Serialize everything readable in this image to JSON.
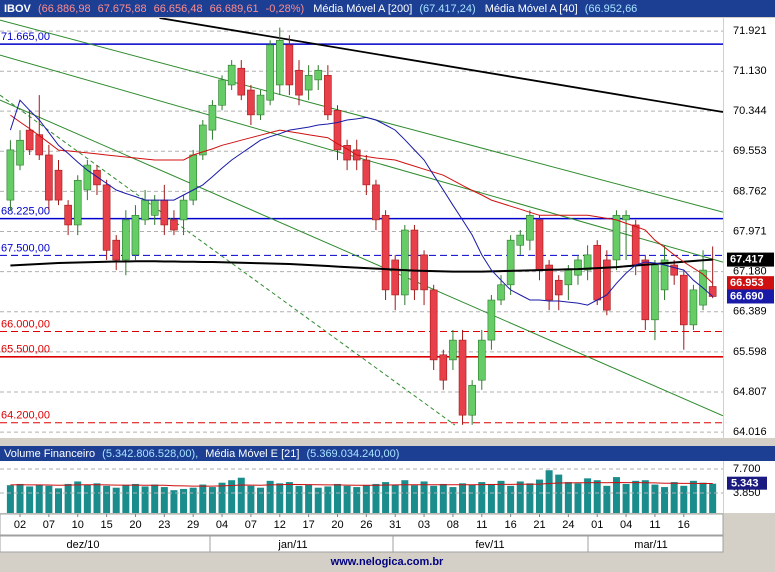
{
  "chart_data": [
    {
      "type": "candlestick",
      "title": "IBOV",
      "quote": [
        "(66.886,98",
        "67.675,88",
        "66.656,48",
        "66.689,61",
        "-0,28%)"
      ],
      "ylim": [
        63900,
        72180
      ],
      "yticks": [
        {
          "value": 71921,
          "label": "71.921"
        },
        {
          "value": 71130,
          "label": "71.130"
        },
        {
          "value": 70344,
          "label": "70.344"
        },
        {
          "value": 69553,
          "label": "69.553"
        },
        {
          "value": 68762,
          "label": "68.762"
        },
        {
          "value": 67971,
          "label": "67.971"
        },
        {
          "value": 67180,
          "label": "67.180"
        },
        {
          "value": 66389,
          "label": "66.389"
        },
        {
          "value": 65598,
          "label": "65.598"
        },
        {
          "value": 64807,
          "label": "64.807"
        },
        {
          "value": 64016,
          "label": "64.016"
        }
      ],
      "grid": true,
      "up_color": "#66cc66",
      "down_color": "#e8404a",
      "candles": [
        [
          68590,
          69770,
          68390,
          69580
        ],
        [
          69280,
          69970,
          69180,
          69770
        ],
        [
          69970,
          70360,
          69480,
          69580
        ],
        [
          69880,
          70660,
          69380,
          69480
        ],
        [
          69480,
          69680,
          68390,
          68590
        ],
        [
          69180,
          69380,
          68490,
          68590
        ],
        [
          68490,
          68590,
          67900,
          68100
        ],
        [
          68100,
          69080,
          67900,
          68980
        ],
        [
          68790,
          69380,
          68590,
          69280
        ],
        [
          69180,
          69280,
          68690,
          68890
        ],
        [
          68890,
          68990,
          67410,
          67600
        ],
        [
          67800,
          67900,
          67210,
          67410
        ],
        [
          67410,
          68390,
          67110,
          68200
        ],
        [
          67510,
          68490,
          67410,
          68290
        ],
        [
          68200,
          68790,
          68100,
          68590
        ],
        [
          68290,
          68690,
          68100,
          68590
        ],
        [
          68590,
          68890,
          67900,
          68100
        ],
        [
          68200,
          68390,
          67900,
          68000
        ],
        [
          68200,
          68690,
          67900,
          68590
        ],
        [
          68590,
          69580,
          68490,
          69480
        ],
        [
          69480,
          70170,
          69380,
          70070
        ],
        [
          69970,
          70560,
          69780,
          70460
        ],
        [
          70460,
          71050,
          70360,
          70960
        ],
        [
          70860,
          71350,
          70760,
          71250
        ],
        [
          71190,
          71350,
          70560,
          70660
        ],
        [
          70760,
          70860,
          70070,
          70270
        ],
        [
          70270,
          70760,
          70170,
          70660
        ],
        [
          70560,
          71740,
          70460,
          71650
        ],
        [
          70860,
          71990,
          70660,
          71740
        ],
        [
          71650,
          71840,
          70660,
          70860
        ],
        [
          71150,
          71350,
          70460,
          70660
        ],
        [
          70760,
          71250,
          70560,
          71050
        ],
        [
          70960,
          71250,
          70760,
          71150
        ],
        [
          71050,
          71250,
          70170,
          70270
        ],
        [
          70360,
          70460,
          69380,
          69580
        ],
        [
          69670,
          69780,
          69180,
          69380
        ],
        [
          69580,
          69780,
          69180,
          69380
        ],
        [
          69380,
          69480,
          68690,
          68890
        ],
        [
          68890,
          68990,
          68000,
          68200
        ],
        [
          68290,
          68390,
          66620,
          66820
        ],
        [
          67410,
          67510,
          66420,
          66720
        ],
        [
          66720,
          68100,
          66520,
          68000
        ],
        [
          68000,
          68100,
          66620,
          66820
        ],
        [
          67510,
          67600,
          66520,
          66820
        ],
        [
          66820,
          66920,
          65240,
          65440
        ],
        [
          65540,
          65640,
          64850,
          65040
        ],
        [
          65440,
          66030,
          65240,
          65830
        ],
        [
          65830,
          66030,
          64160,
          64350
        ],
        [
          64350,
          65040,
          64160,
          64940
        ],
        [
          65040,
          66030,
          64850,
          65830
        ],
        [
          65830,
          66720,
          65640,
          66620
        ],
        [
          66620,
          67110,
          66520,
          66920
        ],
        [
          66920,
          67900,
          66720,
          67800
        ],
        [
          67700,
          68000,
          67510,
          67900
        ],
        [
          67800,
          68390,
          67600,
          68290
        ],
        [
          68200,
          68290,
          67010,
          67210
        ],
        [
          67310,
          67410,
          66420,
          66620
        ],
        [
          67010,
          67110,
          66420,
          66720
        ],
        [
          66920,
          67310,
          66620,
          67210
        ],
        [
          67110,
          67510,
          66920,
          67410
        ],
        [
          67210,
          67700,
          67010,
          67510
        ],
        [
          67700,
          67800,
          66520,
          66620
        ],
        [
          67410,
          67600,
          66320,
          66420
        ],
        [
          67410,
          68390,
          67210,
          68290
        ],
        [
          68200,
          68390,
          67410,
          68290
        ],
        [
          68100,
          68200,
          67110,
          67310
        ],
        [
          67410,
          67510,
          66030,
          66230
        ],
        [
          66230,
          67410,
          65830,
          67310
        ],
        [
          66820,
          67700,
          66620,
          67410
        ],
        [
          67310,
          67410,
          66920,
          67110
        ],
        [
          67110,
          67210,
          65640,
          66130
        ],
        [
          66130,
          66920,
          66030,
          66820
        ],
        [
          66520,
          67600,
          66420,
          67210
        ],
        [
          66886.98,
          67675.88,
          66656.48,
          66689.61
        ]
      ],
      "series": [
        {
          "name": "Média Móvel A [200]",
          "value_label": "(67.417,24)",
          "last_label": "67.417",
          "color": "#000000",
          "values": [
            67300,
            67310,
            67320,
            67330,
            67340,
            67350,
            67355,
            67360,
            67365,
            67370,
            67375,
            67380,
            67380,
            67385,
            67385,
            67385,
            67380,
            67380,
            67375,
            67375,
            67370,
            67370,
            67365,
            67360,
            67355,
            67350,
            67345,
            67340,
            67335,
            67330,
            67320,
            67310,
            67300,
            67290,
            67280,
            67270,
            67260,
            67250,
            67240,
            67230,
            67220,
            67210,
            67200,
            67195,
            67190,
            67185,
            67180,
            67180,
            67180,
            67180,
            67185,
            67190,
            67195,
            67200,
            67205,
            67210,
            67215,
            67220,
            67225,
            67230,
            67240,
            67250,
            67260,
            67270,
            67285,
            67300,
            67315,
            67330,
            67345,
            67360,
            67375,
            67390,
            67405,
            67417.24
          ]
        },
        {
          "name": "Média Móvel A [40]",
          "value_label": "(66.952,66",
          "last_label": "66.953",
          "color": "#d01010",
          "values": [
            70265,
            70130,
            70000,
            69860,
            69720,
            69576,
            69560,
            69540,
            69520,
            69500,
            69480,
            69460,
            69440,
            69420,
            69400,
            69380,
            69380,
            69380,
            69380,
            69480,
            69540,
            69600,
            69670,
            69720,
            69770,
            69820,
            69870,
            69920,
            69970,
            69940,
            69910,
            69880,
            69850,
            69820,
            69700,
            69600,
            69480,
            69450,
            69420,
            69400,
            69380,
            69320,
            69260,
            69200,
            69140,
            69080,
            68980,
            68880,
            68780,
            68690,
            68590,
            68530,
            68470,
            68410,
            68350,
            68290,
            68290,
            68290,
            68290,
            68290,
            68290,
            68260,
            68230,
            68200,
            68130,
            68070,
            68000,
            67800,
            67660,
            67510,
            67370,
            67250,
            67130,
            66952.66
          ]
        },
        {
          "last_label": "66.690",
          "color": "#1a1aa8",
          "values": [
            69970,
            70560,
            70360,
            70170,
            69920,
            69670,
            69510,
            69340,
            69180,
            69050,
            68920,
            68790,
            68720,
            68660,
            68590,
            68590,
            68590,
            68590,
            68690,
            68790,
            68890,
            69050,
            69220,
            69380,
            69510,
            69640,
            69770,
            69840,
            69900,
            69970,
            70000,
            70030,
            70070,
            70090,
            70120,
            70170,
            70190,
            70220,
            70170,
            70070,
            69970,
            69780,
            69580,
            69380,
            69080,
            68790,
            68490,
            68200,
            67900,
            67510,
            67210,
            67010,
            66820,
            66720,
            66620,
            66620,
            66600,
            66600,
            66580,
            66560,
            66520,
            66620,
            66720,
            66950,
            67150,
            67310,
            67370,
            67350,
            67310,
            67260,
            67210,
            67010,
            66860,
            66690
          ]
        }
      ],
      "levels": [
        {
          "value": 71665,
          "label": "71.665,00",
          "color": "#0000cc",
          "style": "solid"
        },
        {
          "value": 68225,
          "label": "68.225,00",
          "color": "#0000cc",
          "style": "solid"
        },
        {
          "value": 67500,
          "label": "67.500,00",
          "color": "#0000cc",
          "style": "dashed"
        },
        {
          "value": 66000,
          "label": "66.000,00",
          "color": "#dd0000",
          "style": "dashed"
        },
        {
          "value": 65500,
          "label": "65.500,00",
          "color": "#dd0000",
          "style": "solid"
        },
        {
          "value": 64200,
          "label": "64.200,00",
          "color": "#dd0000",
          "style": "dashed"
        }
      ],
      "trendlines": [
        {
          "color": "#000000",
          "style": "solid",
          "x": [
            15.5,
            74.07
          ],
          "y": [
            72180,
            70326
          ]
        },
        {
          "color": "#2e8b2e",
          "style": "solid",
          "x": [
            -1.08,
            74.07
          ],
          "y": [
            72138,
            68353
          ]
        },
        {
          "color": "#2e8b2e",
          "style": "solid",
          "x": [
            -1.08,
            74.07
          ],
          "y": [
            71448,
            67368
          ]
        },
        {
          "color": "#2e8b2e",
          "style": "solid",
          "x": [
            -1.08,
            74.07
          ],
          "y": [
            70561,
            64338
          ]
        },
        {
          "color": "#2e8b2e",
          "style": "dashed",
          "x": [
            -1.08,
            46.2
          ],
          "y": [
            70660,
            64155
          ]
        }
      ]
    },
    {
      "type": "bar",
      "title": "Volume Financeiro",
      "value_label": "(5.342.806.528,00),",
      "ylim": [
        642,
        8980
      ],
      "yticks": [
        {
          "value": 7700,
          "label": "7.700"
        },
        {
          "value": 3850,
          "label": "3.850"
        }
      ],
      "grid": true,
      "color": "#1a8c8c",
      "values": [
        5100,
        5300,
        4900,
        5200,
        5000,
        4600,
        5300,
        5700,
        5200,
        5400,
        5000,
        4700,
        5100,
        5300,
        4900,
        5200,
        4800,
        4300,
        4500,
        4700,
        5200,
        4800,
        5500,
        5900,
        6300,
        5000,
        4700,
        5800,
        5400,
        5600,
        5000,
        5200,
        4700,
        4900,
        5300,
        5000,
        4800,
        5100,
        5300,
        5600,
        5200,
        5900,
        5100,
        5700,
        5000,
        5300,
        4800,
        5400,
        5200,
        5600,
        5300,
        5800,
        5000,
        5700,
        5400,
        6000,
        7500,
        6800,
        5600,
        5400,
        6200,
        5900,
        5000,
        6400,
        5300,
        5800,
        5900,
        5200,
        4800,
        5600,
        5000,
        5800,
        5500,
        5342.806528
      ],
      "last_label": "5.343",
      "series": [
        {
          "name": "Média Móvel E [21]",
          "value_label": "(5.369.034.240,00)",
          "color": "#d01010",
          "values": [
            5150,
            5160,
            5140,
            5150,
            5130,
            5100,
            5120,
            5150,
            5160,
            5170,
            5150,
            5120,
            5110,
            5120,
            5100,
            5100,
            5080,
            5020,
            4980,
            4950,
            4960,
            4950,
            4980,
            5050,
            5130,
            5120,
            5100,
            5150,
            5180,
            5220,
            5210,
            5200,
            5170,
            5150,
            5140,
            5120,
            5100,
            5090,
            5100,
            5130,
            5140,
            5170,
            5160,
            5180,
            5170,
            5180,
            5160,
            5170,
            5180,
            5200,
            5210,
            5230,
            5220,
            5240,
            5250,
            5280,
            5380,
            5450,
            5470,
            5480,
            5500,
            5520,
            5500,
            5530,
            5510,
            5520,
            5500,
            5470,
            5420,
            5410,
            5390,
            5390,
            5380,
            5369.03424
          ]
        }
      ],
      "categories": [
        null,
        "02",
        null,
        null,
        "07",
        null,
        null,
        "10",
        null,
        null,
        "15",
        null,
        null,
        "20",
        null,
        null,
        "23",
        null,
        null,
        "29",
        null,
        null,
        "04",
        null,
        null,
        "07",
        null,
        null,
        "12",
        null,
        null,
        "17",
        null,
        null,
        "20",
        null,
        null,
        "26",
        null,
        null,
        "31",
        null,
        null,
        "03",
        null,
        null,
        "08",
        null,
        null,
        "11",
        null,
        null,
        "16",
        null,
        null,
        "21",
        null,
        null,
        "24",
        null,
        null,
        "01",
        null,
        null,
        "04",
        null,
        null,
        "11",
        null,
        null,
        "16",
        null,
        null,
        null
      ],
      "months": [
        "dez/10",
        "jan/11",
        "fev/11",
        "mar/11"
      ]
    }
  ],
  "footer": "www.nelogica.com.br"
}
